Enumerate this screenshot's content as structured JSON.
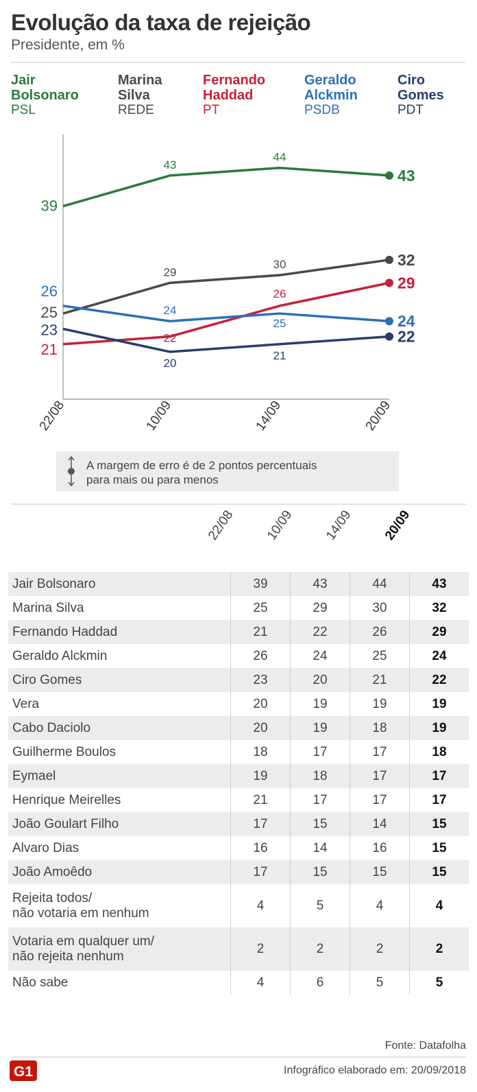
{
  "header": {
    "title": "Evolução da taxa de rejeição",
    "subtitle": "Presidente, em %"
  },
  "legend": [
    {
      "name": "Jair\nBolsonaro",
      "party": "PSL",
      "color": "#2b7a3b"
    },
    {
      "name": "Marina\nSilva",
      "party": "REDE",
      "color": "#4a4a4a"
    },
    {
      "name": "Fernando\nHaddad",
      "party": "PT",
      "color": "#c4213a"
    },
    {
      "name": "Geraldo\nAlckmin",
      "party": "PSDB",
      "color": "#2e6fb7"
    },
    {
      "name": "Ciro\nGomes",
      "party": "PDT",
      "color": "#2a3d6e"
    }
  ],
  "chart_data": {
    "type": "line",
    "x": [
      "22/08",
      "10/09",
      "14/09",
      "20/09"
    ],
    "ylim": [
      14,
      48
    ],
    "series": [
      {
        "name": "Jair Bolsonaro",
        "values": [
          39,
          43,
          44,
          43
        ],
        "color": "#2b7a3b"
      },
      {
        "name": "Marina Silva",
        "values": [
          25,
          29,
          30,
          32
        ],
        "color": "#4a4a4a"
      },
      {
        "name": "Fernando Haddad",
        "values": [
          21,
          22,
          26,
          29
        ],
        "color": "#c4213a"
      },
      {
        "name": "Geraldo Alckmin",
        "values": [
          26,
          24,
          25,
          24
        ],
        "color": "#2e6fb7"
      },
      {
        "name": "Ciro Gomes",
        "values": [
          23,
          20,
          21,
          22
        ],
        "color": "#2a3d6e"
      }
    ]
  },
  "note": {
    "text": "A margem de erro é de 2 pontos percentuais\npara mais ou para menos"
  },
  "table": {
    "dates": [
      "22/08",
      "10/09",
      "14/09",
      "20/09"
    ],
    "rows": [
      {
        "label": "Jair Bolsonaro",
        "values": [
          "39",
          "43",
          "44",
          "43"
        ]
      },
      {
        "label": "Marina Silva",
        "values": [
          "25",
          "29",
          "30",
          "32"
        ]
      },
      {
        "label": "Fernando Haddad",
        "values": [
          "21",
          "22",
          "26",
          "29"
        ]
      },
      {
        "label": "Geraldo Alckmin",
        "values": [
          "26",
          "24",
          "25",
          "24"
        ]
      },
      {
        "label": "Ciro Gomes",
        "values": [
          "23",
          "20",
          "21",
          "22"
        ]
      },
      {
        "label": "Vera",
        "values": [
          "20",
          "19",
          "19",
          "19"
        ]
      },
      {
        "label": "Cabo Daciolo",
        "values": [
          "20",
          "19",
          "18",
          "19"
        ]
      },
      {
        "label": "Guilherme Boulos",
        "values": [
          "18",
          "17",
          "17",
          "18"
        ]
      },
      {
        "label": "Eymael",
        "values": [
          "19",
          "18",
          "17",
          "17"
        ]
      },
      {
        "label": "Henrique Meirelles",
        "values": [
          "21",
          "17",
          "17",
          "17"
        ]
      },
      {
        "label": "João Goulart Filho",
        "values": [
          "17",
          "15",
          "14",
          "15"
        ]
      },
      {
        "label": "Alvaro Dias",
        "values": [
          "16",
          "14",
          "16",
          "15"
        ]
      },
      {
        "label": "João Amoêdo",
        "values": [
          "17",
          "15",
          "15",
          "15"
        ]
      },
      {
        "label": "Rejeita todos/\nnão votaria em nenhum",
        "values": [
          "4",
          "5",
          "4",
          "4"
        ]
      },
      {
        "label": "Votaria em qualquer um/\nnão rejeita nenhum",
        "values": [
          "2",
          "2",
          "2",
          "2"
        ]
      },
      {
        "label": "Não sabe",
        "values": [
          "4",
          "6",
          "5",
          "5"
        ]
      }
    ]
  },
  "footer": {
    "source": "Fonte: Datafolha",
    "credit": "Infográfico elaborado em: 20/09/2018",
    "logo_text": "G1"
  }
}
